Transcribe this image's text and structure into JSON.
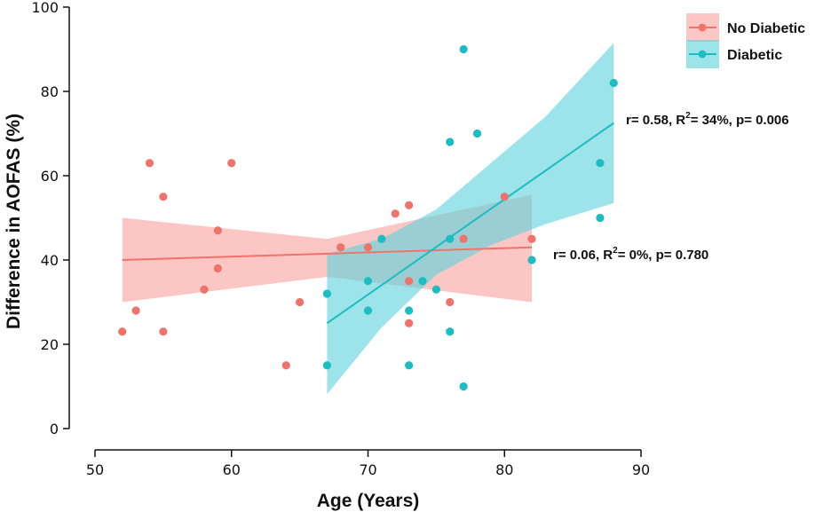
{
  "chart_data": {
    "type": "scatter",
    "title": "",
    "xlabel": "Age (Years)",
    "ylabel": "Difference in AOFAS (%)",
    "xlim": [
      50,
      90
    ],
    "ylim": [
      0,
      100
    ],
    "xticks": [
      "50",
      "60",
      "70",
      "80",
      "90"
    ],
    "yticks": [
      "0",
      "20",
      "40",
      "60",
      "80",
      "100"
    ],
    "legend_position": "top-right",
    "series": [
      {
        "name": "No Diabetic",
        "color": "#F0736B",
        "band_color": "#F8A39E",
        "points": [
          [
            52,
            23
          ],
          [
            53,
            28
          ],
          [
            54,
            63
          ],
          [
            55,
            55
          ],
          [
            55,
            23
          ],
          [
            58,
            33
          ],
          [
            59,
            47
          ],
          [
            59,
            38
          ],
          [
            60,
            63
          ],
          [
            64,
            15
          ],
          [
            65,
            30
          ],
          [
            68,
            43
          ],
          [
            70,
            43
          ],
          [
            72,
            51
          ],
          [
            73,
            53
          ],
          [
            73,
            35
          ],
          [
            73,
            25
          ],
          [
            76,
            30
          ],
          [
            77,
            45
          ],
          [
            80,
            55
          ],
          [
            82,
            45
          ]
        ],
        "fit": {
          "x": [
            52,
            82
          ],
          "y": [
            40,
            43
          ]
        },
        "ci": {
          "x": [
            52,
            67,
            82
          ],
          "lower": [
            30,
            36,
            30
          ],
          "upper": [
            50,
            45,
            55.5
          ]
        },
        "annotation": {
          "pre": "r= 0.06, R",
          "sup": "2",
          "post": "= 0%, p= 0.780"
        }
      },
      {
        "name": "Diabetic",
        "color": "#1BBDC2",
        "band_color": "#5FD3DC",
        "points": [
          [
            67,
            32
          ],
          [
            67,
            15
          ],
          [
            70,
            35
          ],
          [
            70,
            28
          ],
          [
            71,
            45
          ],
          [
            73,
            28
          ],
          [
            73,
            15
          ],
          [
            74,
            35
          ],
          [
            75,
            33
          ],
          [
            76,
            68
          ],
          [
            76,
            45
          ],
          [
            76,
            23
          ],
          [
            77,
            90
          ],
          [
            77,
            10
          ],
          [
            78,
            70
          ],
          [
            82,
            40
          ],
          [
            87,
            63
          ],
          [
            87,
            50
          ],
          [
            88,
            82
          ]
        ],
        "fit": {
          "x": [
            67,
            88
          ],
          "y": [
            25,
            72.5
          ]
        },
        "ci": {
          "x": [
            67,
            71,
            75,
            79,
            83,
            88
          ],
          "lower": [
            8.2,
            24,
            36.5,
            43.5,
            48.5,
            53.5
          ],
          "upper": [
            41.5,
            45,
            52,
            63,
            74,
            91.5
          ]
        },
        "annotation": {
          "pre": "r= 0.58, R",
          "sup": "2",
          "post": "= 34%, p= 0.006"
        }
      }
    ]
  }
}
